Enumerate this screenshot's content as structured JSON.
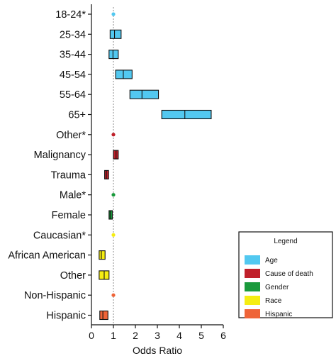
{
  "chart_data": {
    "type": "forest",
    "xlabel": "Odds Ratio",
    "xlim": [
      0,
      6
    ],
    "xticks": [
      0,
      1,
      2,
      3,
      4,
      5,
      6
    ],
    "reference_line": 1,
    "groups": [
      {
        "name": "Age",
        "color": "#52c8f0"
      },
      {
        "name": "Cause of death",
        "color": "#c0202a"
      },
      {
        "name": "Gender",
        "color": "#1a9a3c"
      },
      {
        "name": "Race",
        "color": "#f5ed12"
      },
      {
        "name": "Hispanic",
        "color": "#ef6438"
      }
    ],
    "rows": [
      {
        "label": "18-24*",
        "group": "Age",
        "reference": true,
        "or": 1.0
      },
      {
        "label": "25-34",
        "group": "Age",
        "low": 0.85,
        "or": 1.05,
        "high": 1.35
      },
      {
        "label": "35-44",
        "group": "Age",
        "low": 0.8,
        "or": 0.98,
        "high": 1.22
      },
      {
        "label": "45-54",
        "group": "Age",
        "low": 1.1,
        "or": 1.45,
        "high": 1.85
      },
      {
        "label": "55-64",
        "group": "Age",
        "low": 1.75,
        "or": 2.3,
        "high": 3.05
      },
      {
        "label": "65+",
        "group": "Age",
        "low": 3.2,
        "or": 4.25,
        "high": 5.45
      },
      {
        "label": "Other*",
        "group": "Cause of death",
        "reference": true,
        "or": 1.0
      },
      {
        "label": "Malignancy",
        "group": "Cause of death",
        "low": 1.0,
        "or": 1.12,
        "high": 1.22
      },
      {
        "label": "Trauma",
        "group": "Cause of death",
        "low": 0.6,
        "or": 0.68,
        "high": 0.78
      },
      {
        "label": "Male*",
        "group": "Gender",
        "reference": true,
        "or": 1.0
      },
      {
        "label": "Female",
        "group": "Gender",
        "low": 0.8,
        "or": 0.85,
        "high": 0.95
      },
      {
        "label": "Caucasian*",
        "group": "Race",
        "reference": true,
        "or": 1.0
      },
      {
        "label": "African American",
        "group": "Race",
        "low": 0.35,
        "or": 0.45,
        "high": 0.62
      },
      {
        "label": "Other",
        "group": "Race",
        "low": 0.35,
        "or": 0.58,
        "high": 0.8
      },
      {
        "label": "Non-Hispanic",
        "group": "Hispanic",
        "reference": true,
        "or": 1.0
      },
      {
        "label": "Hispanic",
        "group": "Hispanic",
        "low": 0.38,
        "or": 0.52,
        "high": 0.75
      }
    ],
    "legend": {
      "title": "Legend",
      "placement": "bottom-right"
    }
  }
}
